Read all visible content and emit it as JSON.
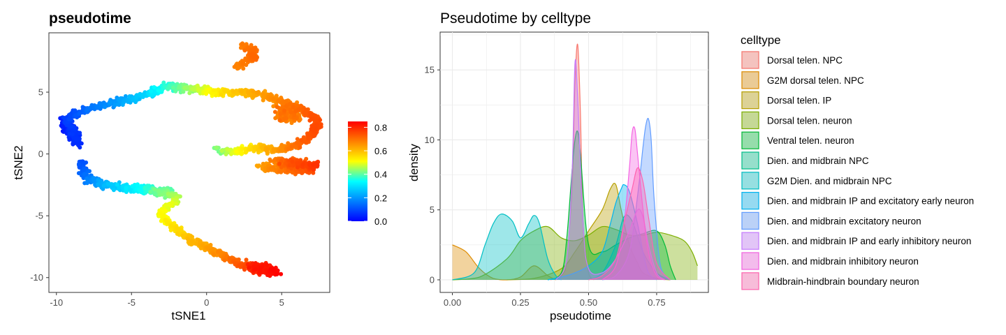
{
  "chart_data": [
    {
      "type": "scatter",
      "title": "pseudotime",
      "xlabel": "tSNE1",
      "ylabel": "tSNE2",
      "xlim": [
        -10.5,
        8.2
      ],
      "ylim": [
        -11.2,
        9.8
      ],
      "xticks": [
        -10,
        -5,
        0,
        5
      ],
      "yticks": [
        -10,
        -5,
        0,
        5
      ],
      "xtick_labels": [
        "-10",
        "-5",
        "0",
        "5"
      ],
      "ytick_labels": [
        "-10",
        "-5",
        "0",
        "5"
      ],
      "grid": false,
      "colorbar": {
        "range": [
          0,
          0.85
        ],
        "ticks": [
          0.0,
          0.2,
          0.4,
          0.6,
          0.8
        ],
        "tick_labels": [
          "0.0",
          "0.2",
          "0.4",
          "0.6",
          "0.8"
        ],
        "colormap": [
          "#0000ff",
          "#0080ff",
          "#00ffff",
          "#ffff00",
          "#ff8000",
          "#ff0000"
        ]
      },
      "trajectory": [
        [
          -9.6,
          3.0,
          0.03
        ],
        [
          -9.3,
          2.2,
          0.03
        ],
        [
          -9.0,
          1.5,
          0.05
        ],
        [
          -8.5,
          0.8,
          0.06
        ],
        [
          -9.3,
          2.8,
          0.08
        ],
        [
          -8.8,
          3.2,
          0.1
        ],
        [
          -8.0,
          3.6,
          0.14
        ],
        [
          -7.0,
          4.0,
          0.17
        ],
        [
          -6.0,
          4.2,
          0.2
        ],
        [
          -5.0,
          4.5,
          0.24
        ],
        [
          -4.0,
          4.8,
          0.28
        ],
        [
          -3.2,
          5.2,
          0.33
        ],
        [
          -2.5,
          5.5,
          0.37
        ],
        [
          -1.5,
          5.3,
          0.42
        ],
        [
          -0.5,
          5.2,
          0.47
        ],
        [
          0.5,
          5.0,
          0.52
        ],
        [
          1.5,
          5.0,
          0.56
        ],
        [
          2.5,
          5.0,
          0.6
        ],
        [
          3.5,
          4.8,
          0.63
        ],
        [
          4.5,
          4.5,
          0.66
        ],
        [
          5.5,
          4.0,
          0.69
        ],
        [
          6.5,
          3.5,
          0.72
        ],
        [
          7.2,
          3.0,
          0.74
        ],
        [
          7.3,
          2.0,
          0.75
        ],
        [
          6.5,
          1.0,
          0.72
        ],
        [
          5.5,
          0.5,
          0.68
        ],
        [
          4.5,
          0.3,
          0.63
        ],
        [
          3.5,
          0.5,
          0.58
        ],
        [
          2.5,
          0.3,
          0.52
        ],
        [
          1.5,
          0.2,
          0.47
        ],
        [
          0.8,
          0.3,
          0.42
        ],
        [
          4.5,
          -0.5,
          0.68
        ],
        [
          5.5,
          -0.7,
          0.72
        ],
        [
          6.5,
          -0.8,
          0.76
        ],
        [
          7.3,
          -0.9,
          0.78
        ],
        [
          6.8,
          -1.3,
          0.74
        ],
        [
          5.5,
          -1.3,
          0.7
        ],
        [
          4.5,
          -1.2,
          0.67
        ],
        [
          3.5,
          -1.0,
          0.63
        ],
        [
          -8.3,
          -0.6,
          0.1
        ],
        [
          -8.2,
          -1.5,
          0.13
        ],
        [
          -7.8,
          -2.1,
          0.17
        ],
        [
          -7.0,
          -2.4,
          0.22
        ],
        [
          -6.0,
          -2.7,
          0.27
        ],
        [
          -5.0,
          -2.8,
          0.31
        ],
        [
          -4.0,
          -2.9,
          0.36
        ],
        [
          -3.0,
          -3.0,
          0.4
        ],
        [
          -2.3,
          -3.3,
          0.44
        ],
        [
          -2.0,
          -3.8,
          0.47
        ],
        [
          -2.5,
          -4.2,
          0.49
        ],
        [
          -3.0,
          -4.6,
          0.5
        ],
        [
          -3.0,
          -5.0,
          0.51
        ],
        [
          -2.3,
          -5.8,
          0.54
        ],
        [
          -1.5,
          -6.5,
          0.57
        ],
        [
          -1.0,
          -7.0,
          0.6
        ],
        [
          0.0,
          -7.5,
          0.63
        ],
        [
          1.0,
          -8.2,
          0.67
        ],
        [
          2.0,
          -8.8,
          0.72
        ],
        [
          3.0,
          -9.2,
          0.77
        ],
        [
          4.0,
          -9.5,
          0.82
        ],
        [
          4.8,
          -9.6,
          0.85
        ],
        [
          2.4,
          8.8,
          0.68
        ],
        [
          3.0,
          8.5,
          0.7
        ],
        [
          3.2,
          7.8,
          0.71
        ],
        [
          2.6,
          7.5,
          0.69
        ],
        [
          2.0,
          7.0,
          0.67
        ]
      ]
    },
    {
      "type": "area",
      "title": "Pseudotime by celltype",
      "xlabel": "pseudotime",
      "ylabel": "density",
      "xlim": [
        -0.045,
        0.94
      ],
      "ylim": [
        -0.9,
        17.7
      ],
      "xticks": [
        0.0,
        0.25,
        0.5,
        0.75
      ],
      "xtick_labels": [
        "0.00",
        "0.25",
        "0.50",
        "0.75"
      ],
      "yticks": [
        0,
        5,
        10,
        15
      ],
      "ytick_labels": [
        "0",
        "5",
        "10",
        "15"
      ],
      "grid": true,
      "legend_title": "celltype",
      "legend_position": "right",
      "series": [
        {
          "name": "Dorsal telen. NPC",
          "color": "#F8766D",
          "x": [
            0.36,
            0.4,
            0.42,
            0.44,
            0.45,
            0.46,
            0.47,
            0.48,
            0.5,
            0.52
          ],
          "y": [
            0,
            0.3,
            1.5,
            7.0,
            14.0,
            16.8,
            12.0,
            4.0,
            0.5,
            0
          ]
        },
        {
          "name": "G2M dorsal telen. NPC",
          "color": "#DE8C00",
          "x": [
            0.0,
            0.05,
            0.1,
            0.15,
            0.2,
            0.25,
            0.3,
            0.35,
            0.38
          ],
          "y": [
            2.5,
            2.0,
            0.8,
            0.1,
            0,
            0.2,
            1.0,
            0.3,
            0
          ]
        },
        {
          "name": "Dorsal telen. IP",
          "color": "#B79F00",
          "x": [
            0.2,
            0.3,
            0.4,
            0.45,
            0.5,
            0.55,
            0.58,
            0.6,
            0.62,
            0.65,
            0.68,
            0.7,
            0.75,
            0.8
          ],
          "y": [
            0,
            0.1,
            0.8,
            2.0,
            3.5,
            5.0,
            6.5,
            6.8,
            5.0,
            2.5,
            1.2,
            0.5,
            0.1,
            0
          ]
        },
        {
          "name": "Dorsal telen. neuron",
          "color": "#7CAE00",
          "x": [
            0.0,
            0.1,
            0.2,
            0.25,
            0.3,
            0.35,
            0.4,
            0.45,
            0.5,
            0.55,
            0.6,
            0.65,
            0.7,
            0.75,
            0.8,
            0.85,
            0.88,
            0.9
          ],
          "y": [
            0,
            0.2,
            1.5,
            2.8,
            3.5,
            3.8,
            3.0,
            2.8,
            3.2,
            3.8,
            3.6,
            3.2,
            3.2,
            3.4,
            3.2,
            2.8,
            2.0,
            1.0
          ]
        },
        {
          "name": "Ventral telen. neuron",
          "color": "#00BA38",
          "x": [
            0.35,
            0.4,
            0.42,
            0.44,
            0.45,
            0.46,
            0.47,
            0.5,
            0.55,
            0.6,
            0.65,
            0.7,
            0.75,
            0.78,
            0.8,
            0.82
          ],
          "y": [
            0,
            0.5,
            3.0,
            8.0,
            10.0,
            10.6,
            9.0,
            2.5,
            2.0,
            2.5,
            3.0,
            3.3,
            3.5,
            2.5,
            1.0,
            0
          ]
        },
        {
          "name": "Dien. and midbrain NPC",
          "color": "#00C08B",
          "x": [
            0.5,
            0.55,
            0.6,
            0.63,
            0.66,
            0.7,
            0.75,
            0.8
          ],
          "y": [
            0,
            0.5,
            2.5,
            4.5,
            4.2,
            2.0,
            0.5,
            0
          ]
        },
        {
          "name": "G2M Dien. and midbrain NPC",
          "color": "#00BFC4",
          "x": [
            0.0,
            0.08,
            0.12,
            0.15,
            0.18,
            0.22,
            0.25,
            0.28,
            0.3,
            0.32,
            0.35,
            0.38,
            0.4
          ],
          "y": [
            0,
            0.5,
            2.5,
            4.0,
            4.7,
            4.2,
            3.0,
            4.0,
            4.6,
            4.0,
            1.5,
            0.3,
            0
          ]
        },
        {
          "name": "Dien. and midbrain IP and excitatory early neuron",
          "color": "#00B4F0",
          "x": [
            0.35,
            0.4,
            0.45,
            0.5,
            0.55,
            0.58,
            0.6,
            0.62,
            0.63,
            0.65,
            0.68,
            0.7,
            0.72,
            0.75
          ],
          "y": [
            0,
            0.2,
            0.5,
            1.0,
            2.0,
            4.0,
            5.5,
            6.5,
            6.8,
            6.3,
            4.0,
            2.0,
            0.5,
            0
          ]
        },
        {
          "name": "Dien. and midbrain excitatory neuron",
          "color": "#619CFF",
          "x": [
            0.55,
            0.6,
            0.65,
            0.68,
            0.7,
            0.71,
            0.72,
            0.73,
            0.74,
            0.76,
            0.78,
            0.8
          ],
          "y": [
            0,
            0.3,
            2.0,
            6.0,
            9.5,
            11.0,
            11.5,
            10.0,
            6.0,
            1.5,
            0.3,
            0
          ]
        },
        {
          "name": "Dien. and midbrain IP and early inhibitory neuron",
          "color": "#C77CFF",
          "x": [
            0.38,
            0.42,
            0.44,
            0.45,
            0.46,
            0.48,
            0.5,
            0.55,
            0.6,
            0.65,
            0.68,
            0.7,
            0.72,
            0.75,
            0.78
          ],
          "y": [
            0,
            1.5,
            8.0,
            15.5,
            13.0,
            4.0,
            0.8,
            0.5,
            1.5,
            3.5,
            5.0,
            4.5,
            2.5,
            0.5,
            0
          ]
        },
        {
          "name": "Dien. and midbrain inhibitory neuron",
          "color": "#F564E3",
          "x": [
            0.55,
            0.6,
            0.63,
            0.65,
            0.66,
            0.67,
            0.68,
            0.7,
            0.72,
            0.75,
            0.78
          ],
          "y": [
            0,
            1.0,
            4.0,
            8.0,
            10.5,
            10.8,
            9.0,
            5.0,
            2.0,
            0.3,
            0
          ]
        },
        {
          "name": "Midbrain-hindbrain boundary neuron",
          "color": "#FF64B0",
          "x": [
            0.5,
            0.55,
            0.6,
            0.63,
            0.66,
            0.68,
            0.7,
            0.72,
            0.75,
            0.8
          ],
          "y": [
            0,
            0.3,
            1.5,
            4.0,
            6.5,
            8.0,
            7.0,
            4.5,
            1.2,
            0
          ]
        }
      ]
    }
  ]
}
